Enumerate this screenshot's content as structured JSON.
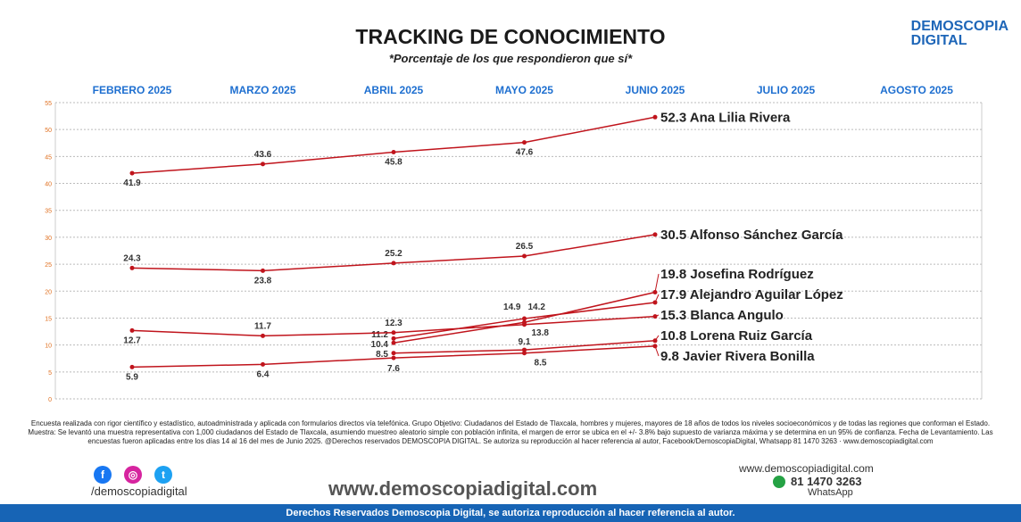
{
  "brand": {
    "line1": "DEMOSCOPIA",
    "line2": "DIGITAL"
  },
  "chart_data": {
    "type": "line",
    "title": "TRACKING DE CONOCIMIENTO",
    "subtitle": "*Porcentaje de los que respondieron que sí*",
    "categories": [
      "FEBRERO 2025",
      "MARZO 2025",
      "ABRIL 2025",
      "MAYO 2025",
      "JUNIO 2025",
      "JULIO 2025",
      "AGOSTO 2025"
    ],
    "ylim": [
      0,
      55
    ],
    "yticks": [
      0,
      5,
      10,
      15,
      20,
      25,
      30,
      35,
      40,
      45,
      50,
      55
    ],
    "series": [
      {
        "name": "Ana Lilia Rivera",
        "values": [
          41.9,
          43.6,
          45.8,
          47.6,
          52.3,
          null,
          null
        ]
      },
      {
        "name": "Alfonso Sánchez García",
        "values": [
          24.3,
          23.8,
          25.2,
          26.5,
          30.5,
          null,
          null
        ]
      },
      {
        "name": "Josefina Rodríguez",
        "values": [
          null,
          null,
          10.4,
          14.2,
          19.8,
          null,
          null
        ]
      },
      {
        "name": "Alejandro Aguilar López",
        "values": [
          null,
          null,
          11.2,
          14.9,
          17.9,
          null,
          null
        ]
      },
      {
        "name": "Blanca Angulo",
        "values": [
          12.7,
          11.7,
          12.3,
          13.8,
          15.3,
          null,
          null
        ]
      },
      {
        "name": "Lorena Ruiz García",
        "values": [
          null,
          null,
          8.5,
          9.1,
          10.8,
          null,
          null
        ]
      },
      {
        "name": "Javier Rivera Bonilla",
        "values": [
          5.9,
          6.4,
          7.6,
          8.5,
          9.8,
          null,
          null
        ]
      }
    ],
    "color": "#c0141c"
  },
  "footnote": "Encuesta realizada con rigor científico y estadístico, autoadministrada y aplicada con formularios directos vía telefónica. Grupo Objetivo: Ciudadanos del Estado de Tlaxcala, hombres y mujeres, mayores de 18 años de todos los niveles socioeconómicos y de todas las regiones que conforman el Estado. Muestra: Se levantó una muestra representativa con 1,000 ciudadanos del Estado de Tlaxcala, asumiendo muestreo aleatorio simple con población infinita, el margen de error se ubica en el +/- 3.8% bajo supuesto de varianza máxima y se determina en un 95% de confianza. Fecha de Levantamiento. Las encuestas fueron aplicadas entre los días 14 al 16 del mes de Junio 2025. @Derechos reservados DEMOSCOPIA DIGITAL. Se autoriza su reproducción al hacer referencia al autor, Facebook/DemoscopiaDigital, Whatsapp 81 1470 3263 · www.demoscopiadigital.com",
  "footer": {
    "handle": "/demoscopiadigital",
    "site": "www.demoscopiadigital.com",
    "site_small": "www.demoscopiadigital.com",
    "phone": "81 1470 3263",
    "whatsapp": "WhatsApp",
    "rights": "Derechos Reservados Demoscopia Digital, se autoriza reproducción al hacer referencia al autor."
  }
}
